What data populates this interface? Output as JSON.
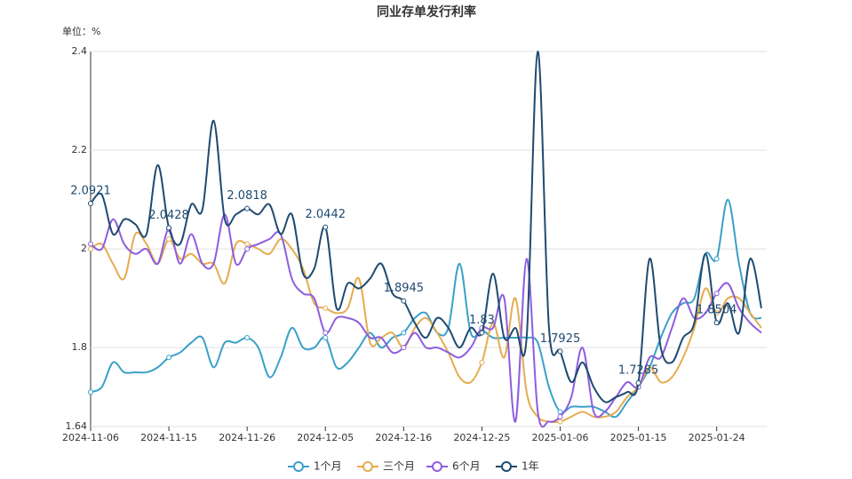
{
  "chart_data": {
    "type": "line",
    "title": "同业存单发行利率",
    "unit_label": "单位：%",
    "categories": [
      "2024-11-06",
      null,
      null,
      null,
      null,
      null,
      null,
      "2024-11-15",
      null,
      null,
      null,
      null,
      null,
      null,
      "2024-11-26",
      null,
      null,
      null,
      null,
      null,
      null,
      "2024-12-05",
      null,
      null,
      null,
      null,
      null,
      null,
      "2024-12-16",
      null,
      null,
      null,
      null,
      null,
      null,
      "2024-12-25",
      null,
      null,
      null,
      null,
      null,
      null,
      "2025-01-06",
      null,
      null,
      null,
      null,
      null,
      null,
      "2025-01-15",
      null,
      null,
      null,
      null,
      null,
      null,
      "2025-01-24",
      null,
      null,
      null,
      null
    ],
    "series": [
      {
        "name": "1个月",
        "color": "#3aa0c8",
        "values": [
          1.71,
          1.72,
          1.77,
          1.75,
          1.75,
          1.75,
          1.76,
          1.78,
          1.79,
          1.81,
          1.82,
          1.76,
          1.81,
          1.81,
          1.82,
          1.8,
          1.74,
          1.78,
          1.84,
          1.8,
          1.8,
          1.82,
          1.76,
          1.77,
          1.8,
          1.83,
          1.8,
          1.82,
          1.83,
          1.86,
          1.87,
          1.83,
          1.84,
          1.97,
          1.83,
          1.835,
          1.82,
          1.82,
          1.82,
          1.82,
          1.81,
          1.72,
          1.67,
          1.68,
          1.68,
          1.68,
          1.67,
          1.66,
          1.69,
          1.72,
          1.76,
          1.82,
          1.87,
          1.89,
          1.9,
          1.99,
          1.98,
          2.1,
          1.97,
          1.87,
          1.86
        ]
      },
      {
        "name": "三个月",
        "color": "#e5ac4f",
        "values": [
          2.0,
          2.01,
          1.97,
          1.94,
          2.03,
          2.01,
          1.97,
          2.02,
          1.98,
          1.99,
          1.97,
          1.97,
          1.93,
          2.01,
          2.01,
          2.0,
          1.99,
          2.02,
          2.0,
          1.96,
          1.89,
          1.88,
          1.87,
          1.88,
          1.94,
          1.81,
          1.82,
          1.83,
          1.8,
          1.84,
          1.86,
          1.83,
          1.79,
          1.74,
          1.73,
          1.77,
          1.85,
          1.78,
          1.9,
          1.71,
          1.66,
          1.65,
          1.65,
          1.66,
          1.67,
          1.66,
          1.66,
          1.67,
          1.7,
          1.72,
          1.76,
          1.73,
          1.74,
          1.78,
          1.84,
          1.92,
          1.87,
          1.9,
          1.9,
          1.87,
          1.84
        ]
      },
      {
        "name": "6个月",
        "color": "#8e5ddf",
        "values": [
          2.01,
          2.0,
          2.06,
          2.01,
          1.99,
          2.0,
          1.97,
          2.04,
          1.97,
          2.03,
          1.97,
          1.97,
          2.07,
          1.97,
          2.0,
          2.01,
          2.02,
          2.03,
          1.94,
          1.91,
          1.9,
          1.83,
          1.86,
          1.86,
          1.85,
          1.82,
          1.82,
          1.79,
          1.8,
          1.83,
          1.8,
          1.8,
          1.79,
          1.78,
          1.8,
          1.84,
          1.84,
          1.9,
          1.65,
          1.98,
          1.67,
          1.65,
          1.66,
          1.7,
          1.8,
          1.67,
          1.67,
          1.7,
          1.73,
          1.72,
          1.78,
          1.78,
          1.84,
          1.9,
          1.86,
          1.87,
          1.91,
          1.93,
          1.88,
          1.85,
          1.83
        ]
      },
      {
        "name": "1年",
        "color": "#1f4a70",
        "values": [
          2.0921,
          2.11,
          2.03,
          2.06,
          2.05,
          2.03,
          2.17,
          2.0428,
          2.01,
          2.09,
          2.08,
          2.26,
          2.06,
          2.07,
          2.0818,
          2.07,
          2.09,
          2.03,
          2.07,
          1.95,
          1.96,
          2.0442,
          1.88,
          1.93,
          1.92,
          1.94,
          1.97,
          1.91,
          1.8945,
          1.85,
          1.82,
          1.86,
          1.84,
          1.8,
          1.84,
          1.83,
          1.95,
          1.82,
          1.84,
          1.82,
          2.4,
          1.84,
          1.7925,
          1.73,
          1.77,
          1.72,
          1.69,
          1.7,
          1.71,
          1.7285,
          1.98,
          1.8,
          1.77,
          1.82,
          1.85,
          1.99,
          1.8504,
          1.89,
          1.83,
          1.98,
          1.88
        ]
      }
    ],
    "ylim": [
      1.64,
      2.4
    ],
    "yticks": [
      1.64,
      1.8,
      2,
      2.2,
      2.4
    ],
    "grid": true,
    "legend": "bottom"
  }
}
